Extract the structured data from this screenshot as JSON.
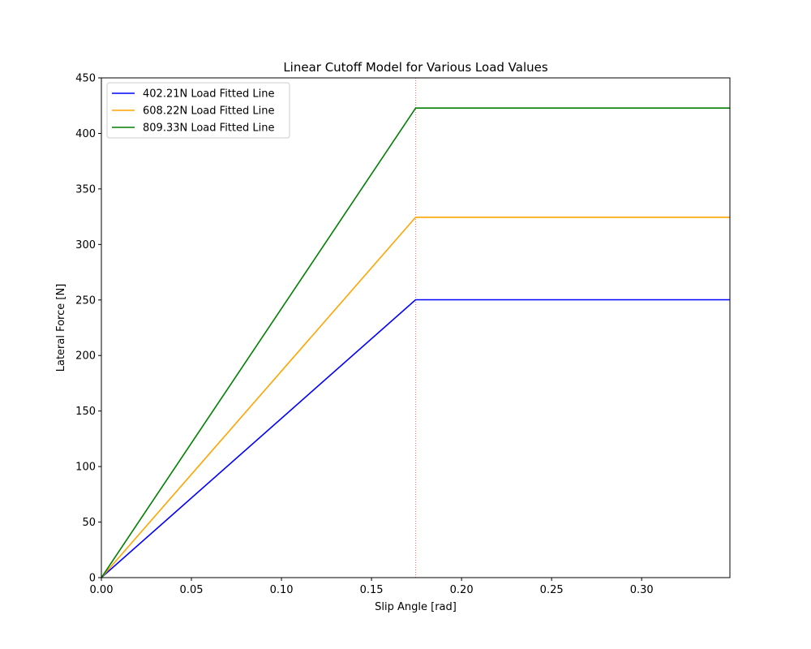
{
  "chart_data": {
    "type": "line",
    "title": "Linear Cutoff Model for Various Load Values",
    "xlabel": "Slip Angle [rad]",
    "ylabel": "Lateral Force [N]",
    "xlim": [
      0,
      0.349
    ],
    "ylim": [
      0,
      450
    ],
    "xticks": [
      0.0,
      0.05,
      0.1,
      0.15,
      0.2,
      0.25,
      0.3
    ],
    "xtick_labels": [
      "0.00",
      "0.05",
      "0.10",
      "0.15",
      "0.20",
      "0.25",
      "0.30"
    ],
    "yticks": [
      0,
      50,
      100,
      150,
      200,
      250,
      300,
      350,
      400,
      450
    ],
    "ytick_labels": [
      "0",
      "50",
      "100",
      "150",
      "200",
      "250",
      "300",
      "350",
      "400",
      "450"
    ],
    "grid": false,
    "legend_position": "top-left",
    "cutoff": {
      "x": 0.1745,
      "color": "#ff0000",
      "style": "dotted"
    },
    "series": [
      {
        "name": "402.21N Load Fitted Line",
        "color": "#0000ff",
        "points": [
          [
            0,
            0
          ],
          [
            0.1745,
            250.2
          ],
          [
            0.349,
            250.2
          ]
        ]
      },
      {
        "name": "608.22N Load Fitted Line",
        "color": "#ffa500",
        "points": [
          [
            0,
            0
          ],
          [
            0.1745,
            324.5
          ],
          [
            0.349,
            324.5
          ]
        ]
      },
      {
        "name": "809.33N Load Fitted Line",
        "color": "#008000",
        "points": [
          [
            0,
            0
          ],
          [
            0.1745,
            422.8
          ],
          [
            0.349,
            422.8
          ]
        ]
      }
    ]
  }
}
